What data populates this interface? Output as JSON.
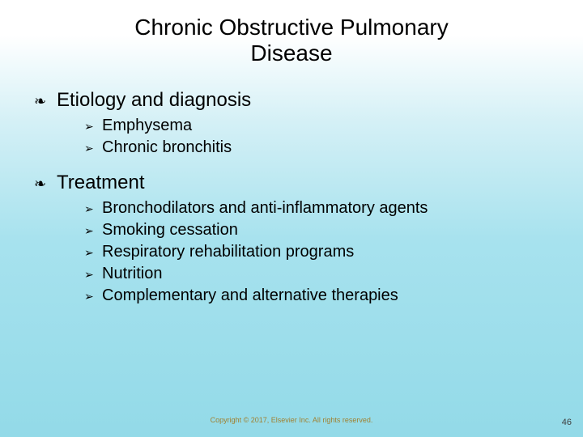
{
  "title_line1": "Chronic Obstructive Pulmonary",
  "title_line2": "Disease",
  "sections": [
    {
      "heading": "Etiology and diagnosis",
      "items": [
        "Emphysema",
        "Chronic bronchitis"
      ]
    },
    {
      "heading": "Treatment",
      "items": [
        "Bronchodilators and anti-inflammatory agents",
        "Smoking cessation",
        "Respiratory rehabilitation programs",
        "Nutrition",
        "Complementary and alternative therapies"
      ]
    }
  ],
  "bullet_l1": "❧",
  "bullet_l2": "➢",
  "footer": "Copyright © 2017, Elsevier Inc. All rights reserved.",
  "page_number": "46",
  "colors": {
    "text": "#000000",
    "footer": "#a08030",
    "bg_top": "#ffffff",
    "bg_bottom": "#93dae8"
  },
  "fonts": {
    "title_size_pt": 28,
    "l1_size_pt": 24,
    "l2_size_pt": 20,
    "footer_size_pt": 9
  }
}
